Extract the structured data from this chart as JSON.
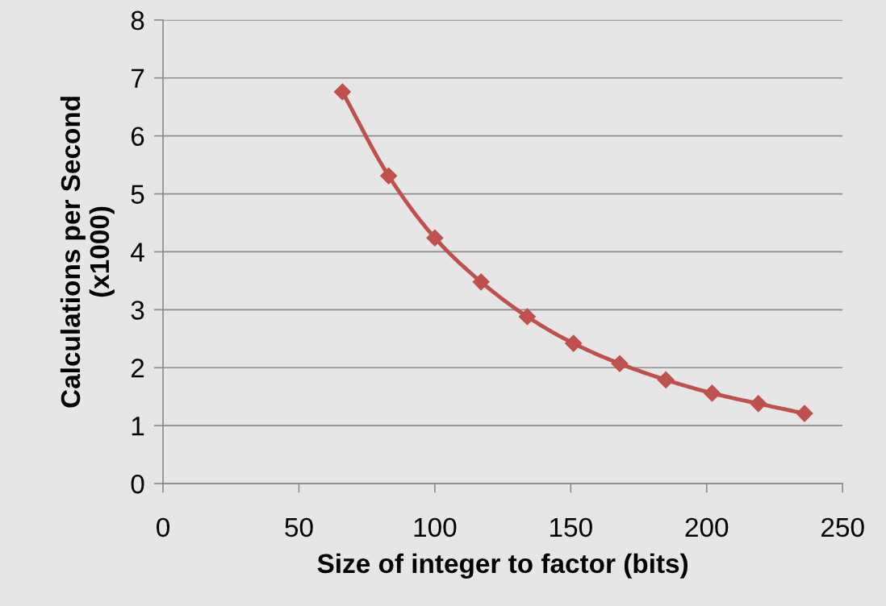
{
  "chart_data": {
    "type": "line",
    "xlabel": "Size of integer to factor (bits)",
    "ylabel": "Calculations per Second\n(x1000)",
    "x": [
      66,
      83,
      100,
      117,
      134,
      151,
      168,
      185,
      202,
      219,
      236
    ],
    "series": [
      {
        "color": "#c0504d",
        "values": [
          6.76,
          5.31,
          4.24,
          3.48,
          2.88,
          2.42,
          2.07,
          1.79,
          1.56,
          1.38,
          1.21
        ]
      }
    ],
    "xlim": [
      0,
      250
    ],
    "xticks": [
      0,
      50,
      100,
      150,
      200,
      250
    ],
    "ylim": [
      0,
      8
    ],
    "yticks": [
      0,
      1,
      2,
      3,
      4,
      5,
      6,
      7,
      8
    ],
    "grid": "y",
    "marker": "diamond",
    "line_style": "solid",
    "legend": false
  }
}
